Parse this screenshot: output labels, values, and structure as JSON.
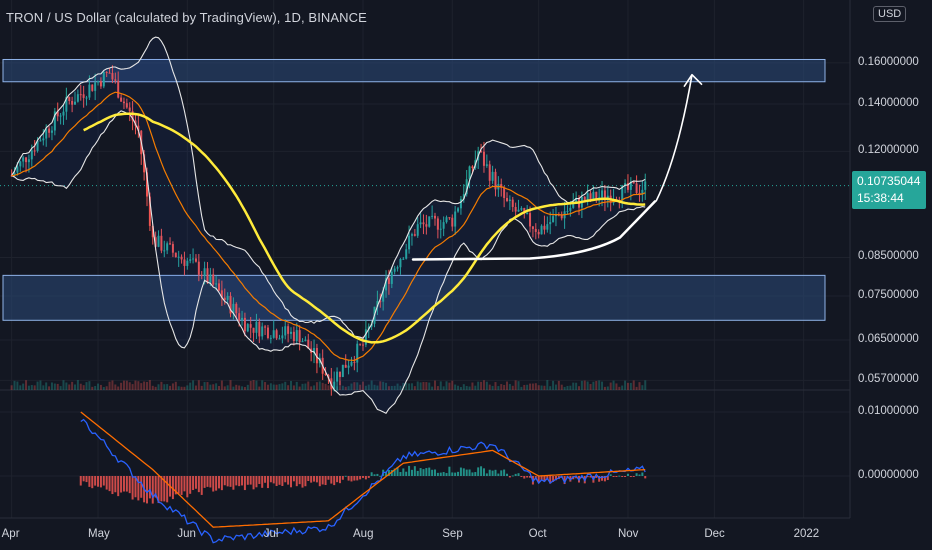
{
  "header": {
    "title": "TRON / US Dollar (calculated by TradingView), 1D, BINANCE",
    "currency": "USD"
  },
  "price_tag": {
    "price": "0.10735044",
    "countdown": "15:38:44"
  },
  "colors": {
    "background": "#131722",
    "zone_fill": "#2c4a7a",
    "zone_border": "#8fb3e8",
    "up": "#26a69a",
    "down": "#ef5350",
    "bollinger": "#e6e6e6",
    "ema_orange": "#f57c00",
    "ma_yellow": "#ffeb3b",
    "macd_line": "#2962ff",
    "signal_line": "#ff6d00"
  },
  "chart_data": [
    {
      "type": "candlestick",
      "x_axis": {
        "tick_labels": [
          "Apr",
          "May",
          "Jun",
          "Jul",
          "Aug",
          "Sep",
          "Oct",
          "Nov",
          "Dec",
          "2022"
        ]
      },
      "y_axis": {
        "tick_labels": [
          "0.16000000",
          "0.14000000",
          "0.12000000",
          "0.10735044",
          "0.08500000",
          "0.07500000",
          "0.06500000",
          "0.05700000"
        ],
        "range": [
          0.053,
          0.163
        ]
      },
      "last_price": 0.10735044,
      "supply_demand_zones": [
        {
          "from": 0.1505,
          "to": 0.1618
        },
        {
          "from": 0.0693,
          "to": 0.0802
        }
      ],
      "anchor_points": [
        {
          "date": "2021-04-01",
          "close": 0.111
        },
        {
          "date": "2021-04-20",
          "close": 0.14
        },
        {
          "date": "2021-05-05",
          "close": 0.155
        },
        {
          "date": "2021-05-15",
          "close": 0.128
        },
        {
          "date": "2021-05-20",
          "close": 0.09
        },
        {
          "date": "2021-06-05",
          "close": 0.082
        },
        {
          "date": "2021-06-22",
          "close": 0.068
        },
        {
          "date": "2021-07-10",
          "close": 0.066
        },
        {
          "date": "2021-07-21",
          "close": 0.057
        },
        {
          "date": "2021-08-01",
          "close": 0.064
        },
        {
          "date": "2021-08-10",
          "close": 0.08
        },
        {
          "date": "2021-08-20",
          "close": 0.094
        },
        {
          "date": "2021-09-01",
          "close": 0.096
        },
        {
          "date": "2021-09-10",
          "close": 0.12
        },
        {
          "date": "2021-09-20",
          "close": 0.101
        },
        {
          "date": "2021-10-01",
          "close": 0.093
        },
        {
          "date": "2021-10-15",
          "close": 0.102
        },
        {
          "date": "2021-11-07",
          "close": 0.107
        }
      ],
      "overlays": [
        "Bollinger Bands",
        "EMA",
        "MA"
      ]
    },
    {
      "type": "line",
      "name": "MACD",
      "y_axis": {
        "tick_labels": [
          "0.01000000",
          "0.00000000"
        ]
      },
      "series": [
        {
          "name": "MACD",
          "dates": [
            "2021-04-25",
            "2021-05-20",
            "2021-06-10",
            "2021-07-20",
            "2021-08-15",
            "2021-09-15",
            "2021-10-01",
            "2021-11-07"
          ],
          "values": [
            0.009,
            -0.003,
            -0.01,
            -0.008,
            0.003,
            0.005,
            -0.001,
            0.001
          ]
        },
        {
          "name": "Signal",
          "dates": [
            "2021-04-25",
            "2021-05-20",
            "2021-06-10",
            "2021-07-20",
            "2021-08-15",
            "2021-09-15",
            "2021-10-01",
            "2021-11-07"
          ],
          "values": [
            0.01,
            0.001,
            -0.008,
            -0.007,
            0.002,
            0.004,
            0.0,
            0.001
          ]
        }
      ]
    }
  ]
}
